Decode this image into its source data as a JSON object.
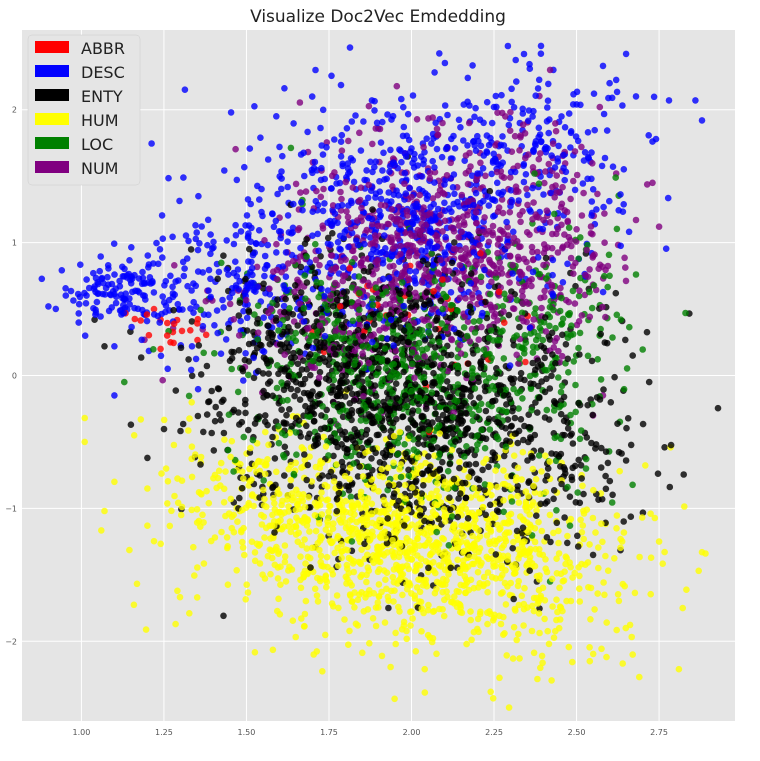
{
  "chart_data": {
    "type": "scatter",
    "title": "Visualize Doc2Vec Emdedding",
    "xlabel": "",
    "ylabel": "",
    "xlim": [
      0.82,
      2.98
    ],
    "ylim": [
      -2.6,
      2.6
    ],
    "x_ticks": [
      1.0,
      1.25,
      1.5,
      1.75,
      2.0,
      2.25,
      2.5,
      2.75
    ],
    "x_tick_labels": [
      "1.00",
      "1.25",
      "1.50",
      "1.75",
      "2.00",
      "2.25",
      "2.50",
      "2.75"
    ],
    "y_ticks": [
      -2,
      -1,
      0,
      1,
      2
    ],
    "y_tick_labels": [
      "−2",
      "−1",
      "0",
      "1",
      "2"
    ],
    "grid": true,
    "background": "#e5e5e5",
    "legend_position": "top-left",
    "series": [
      {
        "name": "ABBR",
        "color": "#ff0000",
        "sample_count": 45,
        "clusters": [
          {
            "cx": 1.25,
            "cy": 0.3,
            "sx": 0.06,
            "sy": 0.1,
            "n": 15
          },
          {
            "cx": 1.95,
            "cy": 0.45,
            "sx": 0.2,
            "sy": 0.3,
            "n": 30
          }
        ],
        "points": [
          [
            1.22,
            0.5
          ],
          [
            1.24,
            0.42
          ],
          [
            1.27,
            0.25
          ],
          [
            1.33,
            0.34
          ],
          [
            1.26,
            0.3
          ],
          [
            1.24,
            0.2
          ],
          [
            1.98,
            0.6
          ],
          [
            2.12,
            0.5
          ]
        ]
      },
      {
        "name": "DESC",
        "color": "#0000ff",
        "sample_count": 1100,
        "clusters": [
          {
            "cx": 1.12,
            "cy": 0.62,
            "sx": 0.09,
            "sy": 0.12,
            "n": 130
          },
          {
            "cx": 1.48,
            "cy": 0.72,
            "sx": 0.16,
            "sy": 0.3,
            "n": 200
          },
          {
            "cx": 2.0,
            "cy": 1.2,
            "sx": 0.26,
            "sy": 0.45,
            "n": 600
          },
          {
            "cx": 2.35,
            "cy": 1.7,
            "sx": 0.15,
            "sy": 0.3,
            "n": 170
          }
        ],
        "points": [
          [
            0.9,
            0.52
          ],
          [
            2.65,
            2.42
          ],
          [
            2.58,
            2.33
          ],
          [
            2.86,
            2.07
          ],
          [
            2.78,
            2.07
          ],
          [
            2.88,
            1.92
          ],
          [
            2.68,
            2.1
          ],
          [
            2.43,
            2.3
          ],
          [
            2.5,
            2.04
          ],
          [
            2.73,
            1.76
          ],
          [
            2.6,
            2.2
          ],
          [
            2.56,
            1.25
          ],
          [
            1.6,
            1.72
          ],
          [
            1.88,
            2.07
          ],
          [
            2.17,
            2.06
          ],
          [
            2.25,
            2.02
          ],
          [
            1.1,
            -0.15
          ],
          [
            1.1,
            0.22
          ]
        ]
      },
      {
        "name": "ENTY",
        "color": "#000000",
        "sample_count": 1450,
        "clusters": [
          {
            "cx": 1.82,
            "cy": 0.1,
            "sx": 0.24,
            "sy": 0.45,
            "n": 700
          },
          {
            "cx": 2.02,
            "cy": -0.45,
            "sx": 0.26,
            "sy": 0.45,
            "n": 550
          },
          {
            "cx": 2.35,
            "cy": -0.3,
            "sx": 0.18,
            "sy": 0.5,
            "n": 200
          }
        ],
        "points": [
          [
            2.72,
            -0.05
          ],
          [
            2.65,
            -0.64
          ],
          [
            1.07,
            0.22
          ],
          [
            1.04,
            0.42
          ],
          [
            2.55,
            -1.35
          ],
          [
            1.15,
            -0.37
          ],
          [
            1.2,
            -0.62
          ],
          [
            2.38,
            -1.55
          ],
          [
            1.93,
            -1.75
          ]
        ]
      },
      {
        "name": "HUM",
        "color": "#ffff00",
        "sample_count": 1400,
        "clusters": [
          {
            "cx": 2.02,
            "cy": -1.25,
            "sx": 0.26,
            "sy": 0.35,
            "n": 1000
          },
          {
            "cx": 1.55,
            "cy": -0.95,
            "sx": 0.18,
            "sy": 0.3,
            "n": 220
          },
          {
            "cx": 2.35,
            "cy": -1.55,
            "sx": 0.18,
            "sy": 0.35,
            "n": 180
          }
        ],
        "points": [
          [
            1.01,
            -0.32
          ],
          [
            1.01,
            -0.5
          ],
          [
            1.18,
            -0.33
          ],
          [
            1.07,
            -1.02
          ],
          [
            1.1,
            -0.8
          ],
          [
            1.16,
            -0.45
          ],
          [
            1.2,
            -0.85
          ],
          [
            2.88,
            -1.33
          ],
          [
            2.87,
            -1.47
          ],
          [
            2.81,
            -2.21
          ],
          [
            2.69,
            -2.27
          ],
          [
            2.67,
            -2.1
          ],
          [
            2.24,
            -2.38
          ],
          [
            2.04,
            -2.21
          ],
          [
            2.64,
            -1.57
          ],
          [
            2.54,
            -2.15
          ],
          [
            2.75,
            -1.25
          ]
        ]
      },
      {
        "name": "LOC",
        "color": "#008000",
        "sample_count": 800,
        "clusters": [
          {
            "cx": 1.92,
            "cy": 0.1,
            "sx": 0.24,
            "sy": 0.4,
            "n": 550
          },
          {
            "cx": 2.42,
            "cy": 0.3,
            "sx": 0.12,
            "sy": 0.5,
            "n": 150
          },
          {
            "cx": 2.1,
            "cy": -0.5,
            "sx": 0.2,
            "sy": 0.4,
            "n": 100
          }
        ],
        "points": [
          [
            2.83,
            0.47
          ],
          [
            2.68,
            0.76
          ],
          [
            2.6,
            0.75
          ],
          [
            1.13,
            -0.05
          ],
          [
            2.42,
            -1.55
          ],
          [
            2.48,
            -1.13
          ],
          [
            2.57,
            0.3
          ]
        ]
      },
      {
        "name": "NUM",
        "color": "#800080",
        "sample_count": 950,
        "clusters": [
          {
            "cx": 2.05,
            "cy": 0.95,
            "sx": 0.2,
            "sy": 0.4,
            "n": 600
          },
          {
            "cx": 2.4,
            "cy": 1.0,
            "sx": 0.12,
            "sy": 0.45,
            "n": 200
          },
          {
            "cx": 1.75,
            "cy": 0.5,
            "sx": 0.18,
            "sy": 0.35,
            "n": 150
          }
        ],
        "points": [
          [
            2.42,
            2.3
          ],
          [
            2.73,
            1.45
          ],
          [
            2.75,
            1.12
          ],
          [
            2.68,
            1.17
          ],
          [
            2.62,
            1.52
          ],
          [
            2.5,
            1.1
          ],
          [
            2.55,
            -0.3
          ],
          [
            2.58,
            -0.15
          ]
        ]
      }
    ]
  }
}
